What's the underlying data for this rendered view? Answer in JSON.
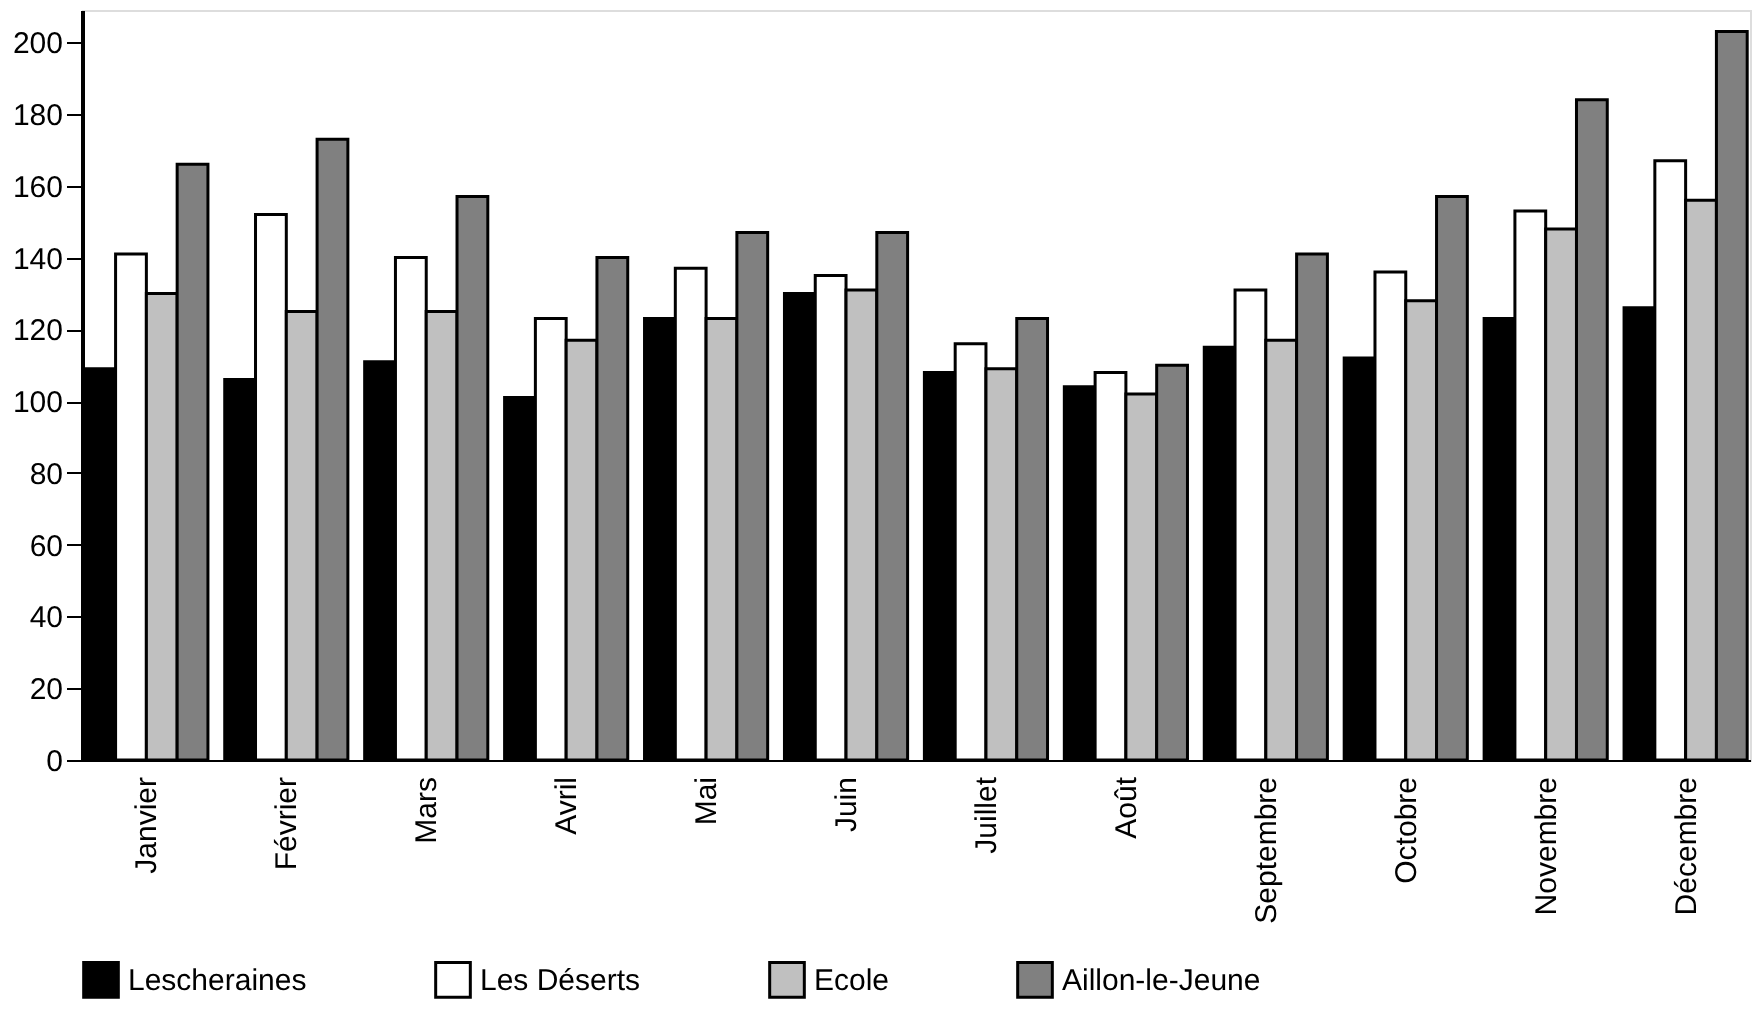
{
  "chart_data": {
    "type": "bar",
    "categories": [
      "Janvier",
      "Février",
      "Mars",
      "Avril",
      "Mai",
      "Juin",
      "Juillet",
      "Août",
      "Septembre",
      "Octobre",
      "Novembre",
      "Décembre"
    ],
    "series": [
      {
        "name": "Lescheraines",
        "color": "#000000",
        "values": [
          109,
          106,
          111,
          101,
          123,
          130,
          108,
          104,
          115,
          112,
          123,
          126
        ]
      },
      {
        "name": "Les Déserts",
        "color": "#ffffff",
        "values": [
          141,
          152,
          140,
          123,
          137,
          135,
          116,
          108,
          131,
          136,
          153,
          167
        ]
      },
      {
        "name": "Ecole",
        "color": "#c0c0c0",
        "values": [
          130,
          125,
          125,
          117,
          123,
          131,
          109,
          102,
          117,
          128,
          148,
          156
        ]
      },
      {
        "name": "Aillon-le-Jeune",
        "color": "#808080",
        "values": [
          166,
          173,
          157,
          140,
          147,
          147,
          123,
          110,
          141,
          157,
          184,
          203
        ]
      }
    ],
    "ylim": [
      0,
      209
    ],
    "yticks": [
      0,
      20,
      40,
      60,
      80,
      100,
      120,
      140,
      160,
      180,
      200
    ],
    "grid": false,
    "legend": "bottom"
  }
}
